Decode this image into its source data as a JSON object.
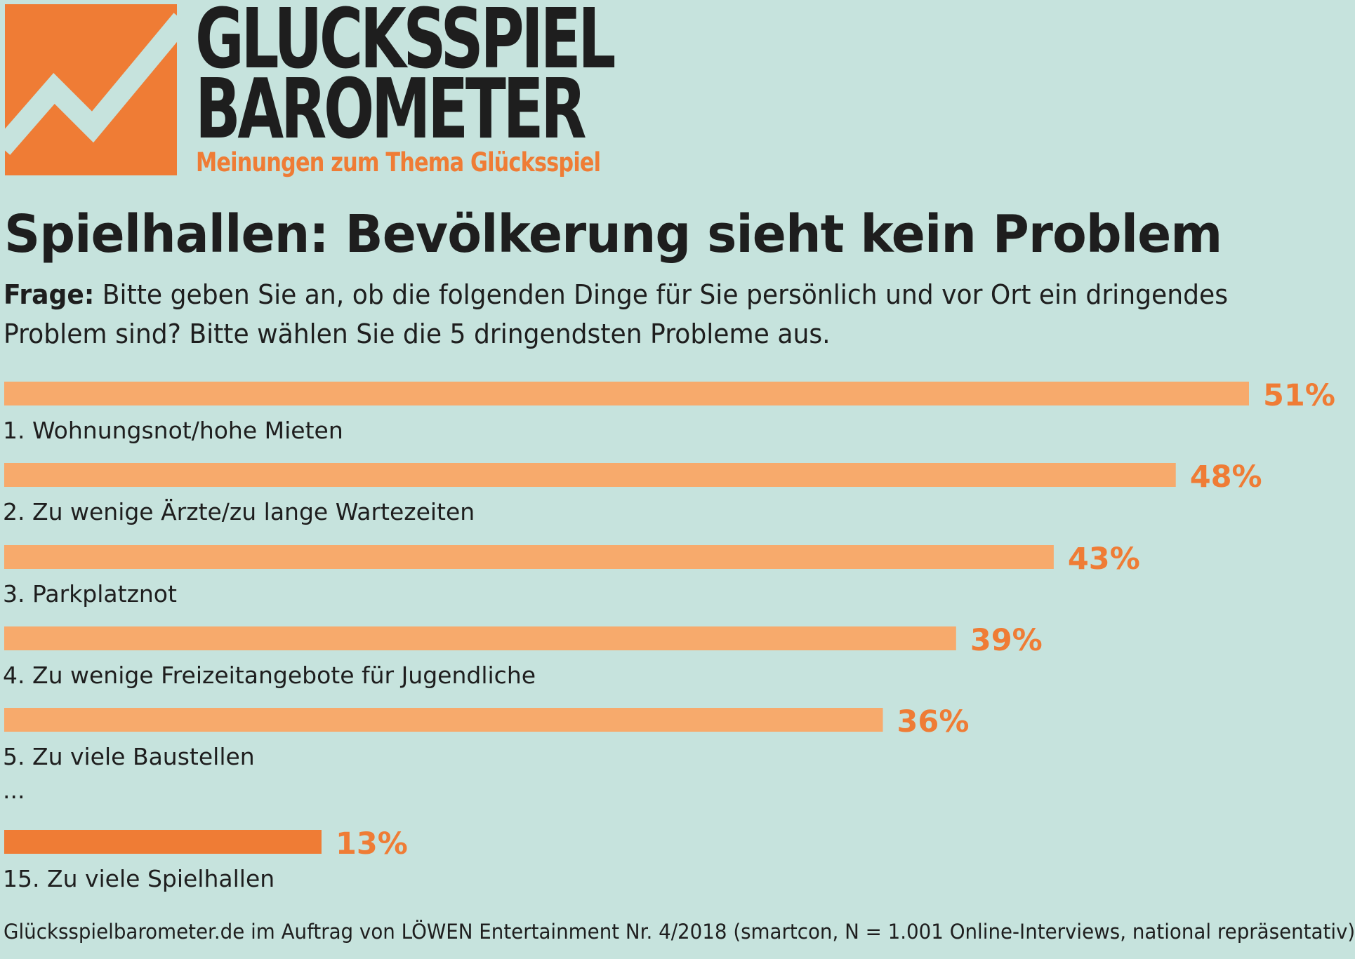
{
  "logo": {
    "line1": "GLUCKSSPIEL",
    "line2": "BAROMETER",
    "tagline": "Meinungen zum Thema Glücksspiel",
    "colors": {
      "orange": "#ef7c35",
      "background": "#c6e3dd"
    }
  },
  "title": "Spielhallen: Bevölkerung sieht kein Problem",
  "question": {
    "label": "Frage:",
    "text": "Bitte geben Sie an, ob die folgenden Dinge für Sie persönlich und vor Ort ein dringendes Problem sind? Bitte wählen Sie die 5 dringendsten Probleme aus."
  },
  "chart_data": {
    "type": "bar",
    "orientation": "horizontal",
    "categories": [
      "1. Wohnungsnot/hohe Mieten",
      "2. Zu wenige Ärzte/zu lange Wartezeiten",
      "3. Parkplatznot",
      "4. Zu wenige Freizeitangebote für Jugendliche",
      "5. Zu viele Baustellen",
      "15. Zu viele Spielhallen"
    ],
    "values": [
      51,
      48,
      43,
      39,
      36,
      13
    ],
    "value_labels": [
      "51%",
      "48%",
      "43%",
      "39%",
      "36%",
      "13%"
    ],
    "gap_marker": "...",
    "gap_after_index": 4,
    "highlight_index": 5,
    "bar_color": "#f7aa6c",
    "highlight_color": "#ef7c35",
    "value_color": "#ef7c35",
    "xlim": [
      0,
      51
    ]
  },
  "source": "Glücksspielbarometer.de im Auftrag von LÖWEN Entertainment Nr. 4/2018 (smartcon, N = 1.001 Online-Interviews, national repräsentativ)"
}
